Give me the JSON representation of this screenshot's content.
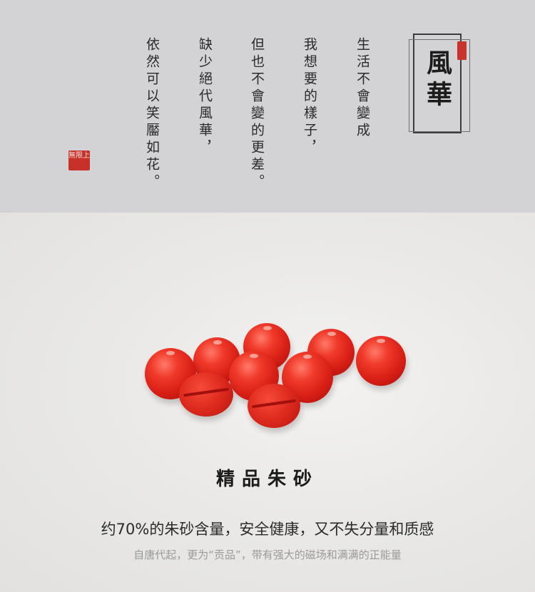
{
  "poem": {
    "title": "風華",
    "lines": [
      "生活不會變成",
      "我想要的樣子，",
      "但也不會變的更差。",
      "缺少絕代風華，",
      "依然可以笑靨如花。"
    ]
  },
  "seals": {
    "small": "",
    "big": "無限上"
  },
  "product": {
    "title": "精品朱砂",
    "subtitle": "约70%的朱砂含量，安全健康，又不失分量和质感",
    "description": "自唐代起，更为“贡品”，带有强大的磁场和满满的正能量"
  },
  "colors": {
    "bead": "#e0261b",
    "seal": "#c7312a",
    "top_band": "#d3d3d5",
    "bottom_band": "#eae9e7"
  }
}
